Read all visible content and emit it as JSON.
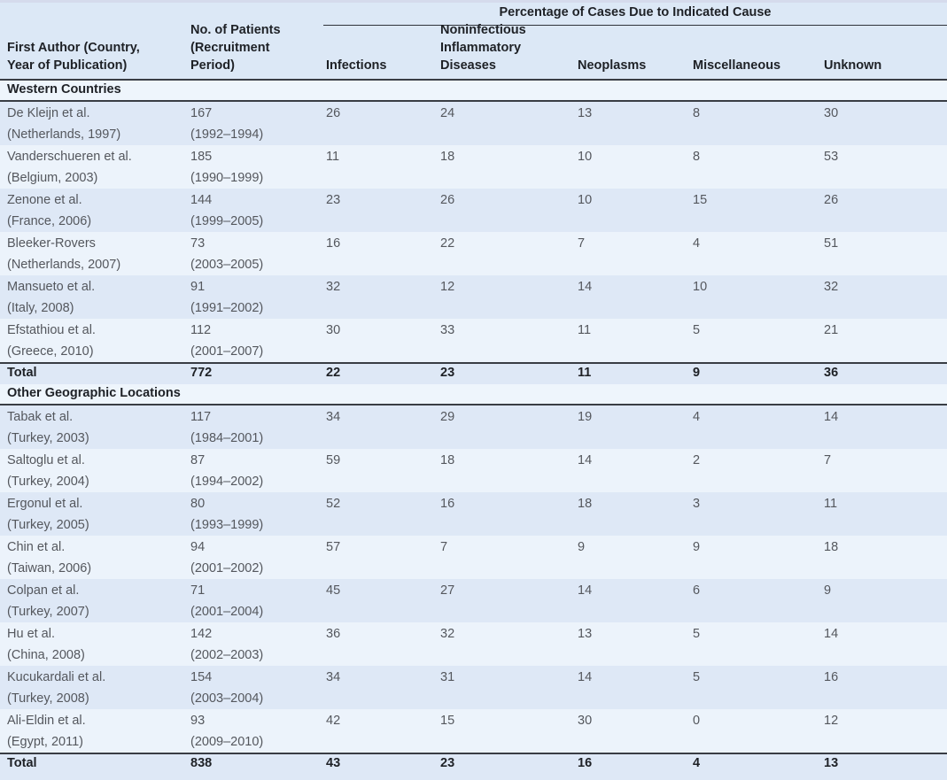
{
  "table": {
    "span_header": "Percentage of Cases Due to Indicated Cause",
    "columns": {
      "author": "First Author (Country,\nYear of Publication)",
      "patients": "No. of Patients\n(Recruitment\nPeriod)",
      "infections": "Infections",
      "nid": "Noninfectious\nInflammatory\nDiseases",
      "neoplasms": "Neoplasms",
      "miscellaneous": "Miscellaneous",
      "unknown": "Unknown"
    },
    "colors": {
      "header_bg": "#dce8f6",
      "row_dark": "#dee8f6",
      "row_light": "#ecf3fb",
      "section_bg": "#eef5fc",
      "rule_dark": "#393d44",
      "text_dark": "#1e2126",
      "text_body": "#54575d"
    },
    "sections": [
      {
        "label": "Western Countries",
        "rows": [
          {
            "author": "De Kleijn et al.",
            "country_year": "(Netherlands, 1997)",
            "patients": "167",
            "period": "(1992–1994)",
            "infections": "26",
            "nid": "24",
            "neoplasms": "13",
            "miscellaneous": "8",
            "unknown": "30"
          },
          {
            "author": "Vanderschueren et al.",
            "country_year": "(Belgium, 2003)",
            "patients": "185",
            "period": "(1990–1999)",
            "infections": "11",
            "nid": "18",
            "neoplasms": "10",
            "miscellaneous": "8",
            "unknown": "53"
          },
          {
            "author": "Zenone et al.",
            "country_year": "(France, 2006)",
            "patients": "144",
            "period": "(1999–2005)",
            "infections": "23",
            "nid": "26",
            "neoplasms": "10",
            "miscellaneous": "15",
            "unknown": "26"
          },
          {
            "author": "Bleeker-Rovers",
            "country_year": "(Netherlands, 2007)",
            "patients": "73",
            "period": "(2003–2005)",
            "infections": "16",
            "nid": "22",
            "neoplasms": "7",
            "miscellaneous": "4",
            "unknown": "51"
          },
          {
            "author": "Mansueto et al.",
            "country_year": "(Italy, 2008)",
            "patients": "91",
            "period": "(1991–2002)",
            "infections": "32",
            "nid": "12",
            "neoplasms": "14",
            "miscellaneous": "10",
            "unknown": "32"
          },
          {
            "author": "Efstathiou et al.",
            "country_year": "(Greece, 2010)",
            "patients": "112",
            "period": "(2001–2007)",
            "infections": "30",
            "nid": "33",
            "neoplasms": "11",
            "miscellaneous": "5",
            "unknown": "21"
          }
        ],
        "total": {
          "label": "Total",
          "patients": "772",
          "infections": "22",
          "nid": "23",
          "neoplasms": "11",
          "miscellaneous": "9",
          "unknown": "36"
        }
      },
      {
        "label": "Other Geographic Locations",
        "rows": [
          {
            "author": "Tabak et al.",
            "country_year": "(Turkey, 2003)",
            "patients": "117",
            "period": "(1984–2001)",
            "infections": "34",
            "nid": "29",
            "neoplasms": "19",
            "miscellaneous": "4",
            "unknown": "14"
          },
          {
            "author": "Saltoglu et al.",
            "country_year": "(Turkey, 2004)",
            "patients": "87",
            "period": "(1994–2002)",
            "infections": "59",
            "nid": "18",
            "neoplasms": "14",
            "miscellaneous": "2",
            "unknown": "7"
          },
          {
            "author": "Ergonul et al.",
            "country_year": "(Turkey, 2005)",
            "patients": "80",
            "period": "(1993–1999)",
            "infections": "52",
            "nid": "16",
            "neoplasms": "18",
            "miscellaneous": "3",
            "unknown": "11"
          },
          {
            "author": "Chin et al.",
            "country_year": "(Taiwan, 2006)",
            "patients": "94",
            "period": "(2001–2002)",
            "infections": "57",
            "nid": "7",
            "neoplasms": "9",
            "miscellaneous": "9",
            "unknown": "18"
          },
          {
            "author": "Colpan et al.",
            "country_year": "(Turkey, 2007)",
            "patients": "71",
            "period": "(2001–2004)",
            "infections": "45",
            "nid": "27",
            "neoplasms": "14",
            "miscellaneous": "6",
            "unknown": "9"
          },
          {
            "author": "Hu et al.",
            "country_year": "(China, 2008)",
            "patients": "142",
            "period": "(2002–2003)",
            "infections": "36",
            "nid": "32",
            "neoplasms": "13",
            "miscellaneous": "5",
            "unknown": "14"
          },
          {
            "author": "Kucukardali et al.",
            "country_year": "(Turkey, 2008)",
            "patients": "154",
            "period": "(2003–2004)",
            "infections": "34",
            "nid": "31",
            "neoplasms": "14",
            "miscellaneous": "5",
            "unknown": "16"
          },
          {
            "author": "Ali-Eldin et al.",
            "country_year": "(Egypt, 2011)",
            "patients": "93",
            "period": "(2009–2010)",
            "infections": "42",
            "nid": "15",
            "neoplasms": "30",
            "miscellaneous": "0",
            "unknown": "12"
          }
        ],
        "total": {
          "label": "Total",
          "patients": "838",
          "infections": "43",
          "nid": "23",
          "neoplasms": "16",
          "miscellaneous": "4",
          "unknown": "13"
        }
      }
    ]
  }
}
